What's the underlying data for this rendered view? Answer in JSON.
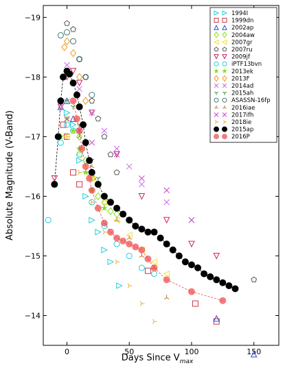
{
  "chart_data": {
    "type": "scatter",
    "xlabel_main": "Days Since V",
    "xlabel_sub": "max",
    "ylabel": "Absolute Magnitude (V-Band)",
    "xlim": [
      -19,
      170
    ],
    "ylim": [
      -13.5,
      -19.2
    ],
    "y_inverted": true,
    "grid": false,
    "legend_position": "top-right",
    "x_ticks": [
      0,
      50,
      100,
      150
    ],
    "x_tick_labels": [
      "0",
      "50",
      "100",
      "150"
    ],
    "y_ticks": [
      -19,
      -18,
      -17,
      -16,
      -15,
      -14
    ],
    "y_tick_labels": [
      "−19",
      "−18",
      "−17",
      "−16",
      "−15",
      "−14"
    ],
    "series": [
      {
        "name": "1994I",
        "color": "#22ccdd",
        "marker": "triangle-right",
        "points": [
          [
            0,
            -17.4
          ],
          [
            5,
            -17.2
          ],
          [
            10,
            -16.6
          ],
          [
            15,
            -16.0
          ],
          [
            20,
            -15.6
          ],
          [
            25,
            -15.4
          ],
          [
            30,
            -15.1
          ],
          [
            35,
            -14.9
          ],
          [
            42,
            -14.5
          ]
        ]
      },
      {
        "name": "1999dn",
        "color": "#cc3344",
        "marker": "square",
        "points": [
          [
            -3,
            -17.2
          ],
          [
            0,
            -17.0
          ],
          [
            5,
            -16.4
          ],
          [
            10,
            -16.2
          ],
          [
            65,
            -14.75
          ],
          [
            103,
            -14.2
          ],
          [
            120,
            -13.9
          ]
        ]
      },
      {
        "name": "2002ap",
        "color": "#3344cc",
        "marker": "triangle-up",
        "points": [
          [
            -5,
            -17.5
          ],
          [
            0,
            -17.6
          ],
          [
            5,
            -17.3
          ],
          [
            120,
            -13.95
          ],
          [
            150,
            -13.35
          ]
        ]
      },
      {
        "name": "2004aw",
        "color": "#88dd22",
        "marker": "diamond",
        "points": [
          [
            10,
            -17.0
          ],
          [
            15,
            -16.6
          ],
          [
            20,
            -16.3
          ],
          [
            25,
            -16.0
          ],
          [
            30,
            -15.9
          ],
          [
            35,
            -15.75
          ],
          [
            40,
            -15.7
          ]
        ]
      },
      {
        "name": "2007gr",
        "color": "#f0e030",
        "marker": "triangle-left",
        "points": [
          [
            0,
            -17.0
          ],
          [
            10,
            -16.7
          ],
          [
            20,
            -16.3
          ],
          [
            30,
            -15.9
          ],
          [
            40,
            -15.6
          ],
          [
            50,
            -15.35
          ],
          [
            60,
            -15.1
          ],
          [
            70,
            -14.9
          ],
          [
            80,
            -14.7
          ]
        ]
      },
      {
        "name": "2007ru",
        "color": "#555555",
        "marker": "pentagon",
        "points": [
          [
            0,
            -18.9
          ],
          [
            5,
            -18.8
          ],
          [
            10,
            -18.3
          ],
          [
            15,
            -18.0
          ],
          [
            20,
            -17.6
          ],
          [
            25,
            -17.3
          ],
          [
            30,
            -17.0
          ],
          [
            35,
            -16.7
          ],
          [
            40,
            -16.4
          ],
          [
            150,
            -14.6
          ]
        ]
      },
      {
        "name": "2009jf",
        "color": "#cc2266",
        "marker": "triangle-down",
        "points": [
          [
            -10,
            -16.3
          ],
          [
            -5,
            -17.5
          ],
          [
            0,
            -18.0
          ],
          [
            5,
            -18.1
          ],
          [
            10,
            -17.9
          ],
          [
            20,
            -17.4
          ],
          [
            40,
            -16.7
          ],
          [
            60,
            -16.0
          ],
          [
            80,
            -15.6
          ],
          [
            100,
            -15.2
          ],
          [
            120,
            -15.0
          ]
        ]
      },
      {
        "name": "iPTF13bvn",
        "color": "#22ccdd",
        "marker": "circle",
        "points": [
          [
            -15,
            -15.6
          ],
          [
            -10,
            -16.2
          ],
          [
            -5,
            -16.9
          ],
          [
            0,
            -17.2
          ],
          [
            5,
            -17.1
          ],
          [
            10,
            -16.7
          ],
          [
            20,
            -15.9
          ],
          [
            30,
            -15.5
          ],
          [
            40,
            -15.2
          ],
          [
            50,
            -15.0
          ],
          [
            60,
            -14.8
          ],
          [
            70,
            -14.7
          ]
        ]
      },
      {
        "name": "2013ek",
        "color": "#88dd22",
        "marker": "star",
        "points": [
          [
            -5,
            -17.0
          ],
          [
            0,
            -17.3
          ],
          [
            5,
            -17.1
          ],
          [
            10,
            -16.8
          ],
          [
            15,
            -16.4
          ],
          [
            20,
            -16.1
          ],
          [
            30,
            -15.8
          ]
        ]
      },
      {
        "name": "2013F",
        "color": "#ee9922",
        "marker": "diamond",
        "points": [
          [
            -2,
            -18.5
          ],
          [
            0,
            -18.6
          ],
          [
            5,
            -18.4
          ],
          [
            10,
            -18.0
          ],
          [
            15,
            -17.6
          ]
        ]
      },
      {
        "name": "2014ad",
        "color": "#cc66ee",
        "marker": "x",
        "points": [
          [
            0,
            -18.2
          ],
          [
            10,
            -17.8
          ],
          [
            20,
            -17.4
          ],
          [
            30,
            -17.1
          ],
          [
            40,
            -16.8
          ],
          [
            50,
            -16.5
          ],
          [
            60,
            -16.2
          ],
          [
            80,
            -15.9
          ],
          [
            100,
            -15.6
          ]
        ]
      },
      {
        "name": "2015ah",
        "color": "#338833",
        "marker": "tri-down",
        "points": [
          [
            0,
            -17.6
          ],
          [
            5,
            -17.5
          ],
          [
            10,
            -17.2
          ],
          [
            15,
            -16.9
          ],
          [
            20,
            -16.6
          ],
          [
            25,
            -16.3
          ]
        ]
      },
      {
        "name": "ASASSN-16fp",
        "color": "#447777",
        "marker": "circle",
        "points": [
          [
            -5,
            -18.7
          ],
          [
            0,
            -18.75
          ],
          [
            5,
            -18.6
          ],
          [
            10,
            -18.3
          ],
          [
            15,
            -18.0
          ],
          [
            20,
            -17.7
          ]
        ]
      },
      {
        "name": "2016iae",
        "color": "#bb7722",
        "marker": "tri-up",
        "points": [
          [
            10,
            -17.0
          ],
          [
            20,
            -16.5
          ],
          [
            30,
            -16.0
          ],
          [
            40,
            -15.6
          ],
          [
            50,
            -15.3
          ],
          [
            60,
            -15.0
          ],
          [
            70,
            -14.8
          ],
          [
            80,
            -14.3
          ]
        ]
      },
      {
        "name": "2017ifh",
        "color": "#cc44cc",
        "marker": "x",
        "points": [
          [
            0,
            -17.3
          ],
          [
            10,
            -17.1
          ],
          [
            20,
            -16.9
          ],
          [
            40,
            -16.7
          ],
          [
            60,
            -16.3
          ],
          [
            80,
            -16.1
          ],
          [
            100,
            -15.6
          ]
        ]
      },
      {
        "name": "2018ie",
        "color": "#eeaa22",
        "marker": "tri-right",
        "points": [
          [
            0,
            -17.0
          ],
          [
            10,
            -16.4
          ],
          [
            20,
            -15.9
          ],
          [
            30,
            -15.4
          ],
          [
            40,
            -14.9
          ],
          [
            50,
            -14.5
          ],
          [
            60,
            -14.2
          ],
          [
            70,
            -13.9
          ]
        ]
      },
      {
        "name": "2015ap",
        "color": "#000000",
        "marker": "circle-filled",
        "connected": true,
        "points": [
          [
            -10,
            -16.2
          ],
          [
            -7,
            -17.0
          ],
          [
            -5,
            -17.6
          ],
          [
            -3,
            -18.0
          ],
          [
            0,
            -18.1
          ],
          [
            2,
            -18.05
          ],
          [
            5,
            -17.9
          ],
          [
            8,
            -17.7
          ],
          [
            10,
            -17.5
          ],
          [
            13,
            -17.2
          ],
          [
            15,
            -16.9
          ],
          [
            18,
            -16.6
          ],
          [
            20,
            -16.4
          ],
          [
            25,
            -16.2
          ],
          [
            30,
            -16.0
          ],
          [
            35,
            -15.9
          ],
          [
            40,
            -15.8
          ],
          [
            45,
            -15.7
          ],
          [
            50,
            -15.6
          ],
          [
            55,
            -15.5
          ],
          [
            60,
            -15.45
          ],
          [
            65,
            -15.4
          ],
          [
            70,
            -15.4
          ],
          [
            75,
            -15.3
          ],
          [
            80,
            -15.2
          ],
          [
            85,
            -15.1
          ],
          [
            90,
            -15.0
          ],
          [
            95,
            -14.9
          ],
          [
            100,
            -14.85
          ],
          [
            105,
            -14.8
          ],
          [
            110,
            -14.7
          ],
          [
            115,
            -14.65
          ],
          [
            120,
            -14.6
          ],
          [
            125,
            -14.55
          ],
          [
            130,
            -14.5
          ],
          [
            135,
            -14.45
          ]
        ]
      },
      {
        "name": "2016P",
        "color": "#ee4444",
        "marker": "circle-filled",
        "connected": true,
        "points": [
          [
            5,
            -17.6
          ],
          [
            8,
            -17.3
          ],
          [
            10,
            -17.1
          ],
          [
            12,
            -16.8
          ],
          [
            15,
            -16.5
          ],
          [
            18,
            -16.3
          ],
          [
            20,
            -16.1
          ],
          [
            25,
            -15.8
          ],
          [
            30,
            -15.55
          ],
          [
            35,
            -15.4
          ],
          [
            40,
            -15.3
          ],
          [
            45,
            -15.25
          ],
          [
            50,
            -15.2
          ],
          [
            55,
            -15.15
          ],
          [
            60,
            -15.1
          ],
          [
            65,
            -14.95
          ],
          [
            70,
            -14.8
          ],
          [
            80,
            -14.6
          ],
          [
            100,
            -14.4
          ],
          [
            125,
            -14.25
          ]
        ]
      }
    ]
  }
}
